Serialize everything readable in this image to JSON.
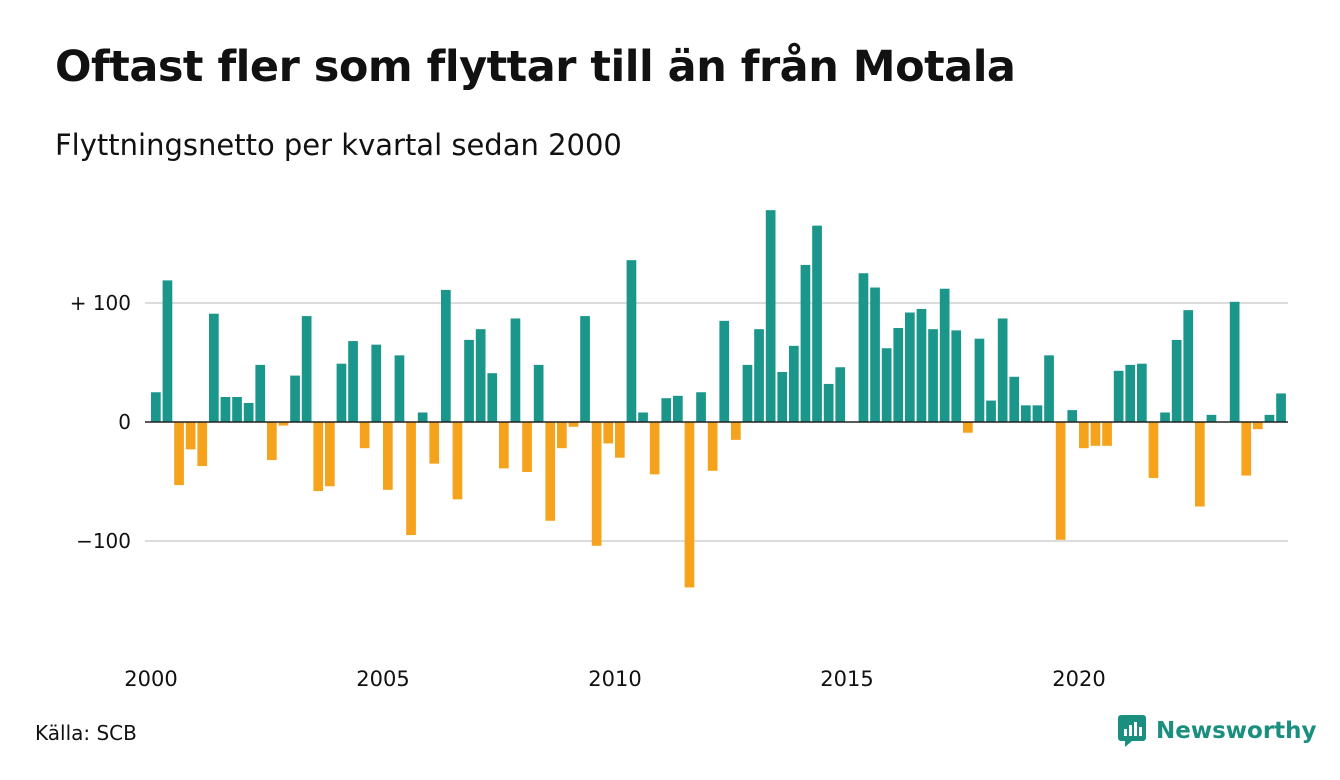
{
  "title": "Oftast fler som flyttar till än från Motala",
  "subtitle": "Flyttningsnetto per kvartal sedan 2000",
  "source": "Källa: SCB",
  "brand": "Newsworthy",
  "colors": {
    "positive": "#1a968a",
    "negative": "#f5a21c",
    "grid": "#dcdcdc",
    "baseline": "#222222",
    "brand": "#1a8f80"
  },
  "chart_data": {
    "type": "bar",
    "title": "Oftast fler som flyttar till än från Motala",
    "subtitle": "Flyttningsnetto per kvartal sedan 2000",
    "x_start_year": 2000,
    "periods_per_year": 4,
    "x_ticks": [
      "2000",
      "2005",
      "2010",
      "2015",
      "2020"
    ],
    "y_ticks": [
      {
        "value": 100,
        "label": "+ 100"
      },
      {
        "value": 0,
        "label": "0"
      },
      {
        "value": -100,
        "label": "−100"
      }
    ],
    "ylim": [
      -160,
      180
    ],
    "grid": true,
    "values": [
      25,
      119,
      -53,
      -23,
      -37,
      91,
      21,
      21,
      16,
      48,
      -32,
      -3,
      39,
      89,
      -58,
      -54,
      49,
      68,
      -22,
      65,
      -57,
      56,
      -95,
      8,
      -35,
      111,
      -65,
      69,
      78,
      41,
      -39,
      87,
      -42,
      48,
      -83,
      -22,
      -4,
      89,
      -104,
      -18,
      -30,
      136,
      8,
      -44,
      20,
      22,
      -139,
      25,
      -41,
      85,
      -15,
      48,
      78,
      178,
      42,
      64,
      132,
      165,
      32,
      46,
      0,
      125,
      113,
      62,
      79,
      92,
      95,
      78,
      112,
      77,
      -9,
      70,
      18,
      87,
      38,
      14,
      14,
      56,
      -99,
      10,
      -22,
      -20,
      -20,
      43,
      48,
      49,
      -47,
      8,
      69,
      94,
      -71,
      6,
      0,
      101,
      -45,
      -6,
      6,
      24
    ]
  }
}
